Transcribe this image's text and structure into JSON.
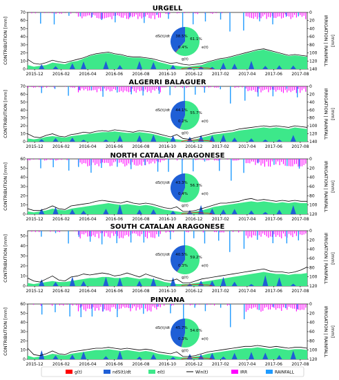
{
  "colors": {
    "g": "#ff0000",
    "ndS": "#1f5fd6",
    "e": "#3de88a",
    "win": "#000000",
    "irr": "#ff00ff",
    "rain": "#1f9bff"
  },
  "legend": {
    "g": "g(t)",
    "ndS": "ndS(t)/dt",
    "e": "e(t)",
    "win": "Win(t)",
    "irr": "IRR",
    "rain": "RAINFALL"
  },
  "x_ticks": [
    "2015-12",
    "2016-02",
    "2016-04",
    "2016-06",
    "2016-08",
    "2016-10",
    "2016-12",
    "2017-02",
    "2017-04",
    "2017-06",
    "2017-08"
  ],
  "chart_data": [
    {
      "type": "area",
      "title": "URGELL",
      "ylabel": "CONTRIBUTION [mm]",
      "ylabel_right": "IRRIGATION | RAINFALL",
      "ylabel_right_unit": "[mm]",
      "ylim": [
        0,
        70
      ],
      "y_ticks": [
        0,
        10,
        20,
        30,
        40,
        50,
        60,
        70
      ],
      "y2lim": [
        0,
        140
      ],
      "y2_ticks": [
        0,
        20,
        40,
        60,
        80,
        100,
        120,
        140
      ],
      "e_profile": [
        5,
        3,
        4,
        5,
        8,
        7,
        6,
        9,
        10,
        13,
        16,
        18,
        19,
        20,
        18,
        17,
        15,
        14,
        14,
        13,
        12,
        9,
        7,
        5,
        4,
        3,
        3,
        4,
        5,
        8,
        10,
        12,
        13,
        15,
        17,
        19,
        21,
        23,
        24,
        22,
        20,
        18,
        16,
        17,
        16,
        15
      ],
      "win_profile": [
        12,
        7,
        6,
        8,
        11,
        9,
        8,
        10,
        12,
        14,
        17,
        19,
        20,
        21,
        19,
        18,
        16,
        15,
        15,
        14,
        13,
        11,
        9,
        7,
        8,
        6,
        5,
        6,
        7,
        9,
        11,
        13,
        14,
        16,
        18,
        20,
        22,
        24,
        25,
        23,
        21,
        19,
        17,
        18,
        17,
        16
      ],
      "pie": [
        {
          "name": "e(t)",
          "pct": 61.1,
          "label": "61.1%"
        },
        {
          "name": "g(t)",
          "pct": 0.4,
          "label": "0.4%"
        },
        {
          "name": "dS(t)/dt",
          "pct": 38.5,
          "label": "38.5%"
        }
      ]
    },
    {
      "type": "area",
      "title": "ALGERRI BALAGUER",
      "ylabel": "CONTRIBUTION [mm]",
      "ylabel_right": "IRRIGATION | RAINFALL",
      "ylabel_right_unit": "[mm]",
      "ylim": [
        0,
        70
      ],
      "y_ticks": [
        0,
        10,
        20,
        30,
        40,
        50,
        60,
        70
      ],
      "y2lim": [
        0,
        140
      ],
      "y2_ticks": [
        0,
        20,
        40,
        60,
        80,
        100,
        120,
        140
      ],
      "e_profile": [
        4,
        3,
        4,
        6,
        7,
        6,
        5,
        7,
        8,
        9,
        10,
        11,
        12,
        12,
        13,
        12,
        11,
        11,
        12,
        11,
        10,
        8,
        6,
        4,
        3,
        2,
        2,
        3,
        5,
        7,
        9,
        10,
        11,
        12,
        14,
        15,
        16,
        17,
        18,
        17,
        18,
        17,
        16,
        18,
        17,
        16
      ],
      "win_profile": [
        10,
        6,
        5,
        8,
        10,
        7,
        6,
        9,
        10,
        12,
        11,
        13,
        14,
        13,
        15,
        14,
        13,
        12,
        14,
        13,
        12,
        10,
        8,
        6,
        9,
        4,
        3,
        5,
        7,
        9,
        11,
        12,
        13,
        14,
        16,
        17,
        18,
        19,
        20,
        19,
        20,
        19,
        18,
        20,
        19,
        18
      ],
      "pie": [
        {
          "name": "e(t)",
          "pct": 55.7,
          "label": "55.7%"
        },
        {
          "name": "g(t)",
          "pct": 0.2,
          "label": "0.2%"
        },
        {
          "name": "dS(t)/dt",
          "pct": 44.1,
          "label": "44.1%"
        }
      ]
    },
    {
      "type": "area",
      "title": "NORTH CATALAN ARAGONESE",
      "ylabel": "CONTRIBUTION [mm]",
      "ylabel_right": "IRRIGATION | RAINFALL",
      "ylabel_right_unit": "[mm]",
      "ylim": [
        0,
        60
      ],
      "y_ticks": [
        0,
        10,
        20,
        30,
        40,
        50,
        60
      ],
      "y2lim": [
        0,
        120
      ],
      "y2_ticks": [
        0,
        20,
        40,
        60,
        80,
        100,
        120
      ],
      "e_profile": [
        3,
        2,
        3,
        4,
        6,
        5,
        4,
        6,
        7,
        8,
        9,
        10,
        11,
        12,
        11,
        10,
        11,
        10,
        9,
        10,
        9,
        7,
        5,
        4,
        3,
        2,
        2,
        3,
        4,
        6,
        8,
        9,
        10,
        11,
        12,
        13,
        14,
        13,
        14,
        13,
        12,
        13,
        12,
        13,
        12,
        12
      ],
      "win_profile": [
        6,
        4,
        4,
        6,
        9,
        6,
        5,
        9,
        10,
        11,
        12,
        14,
        15,
        14,
        13,
        12,
        14,
        12,
        11,
        12,
        11,
        9,
        7,
        6,
        8,
        3,
        3,
        4,
        6,
        8,
        10,
        12,
        12,
        13,
        14,
        16,
        17,
        15,
        16,
        15,
        14,
        15,
        14,
        15,
        14,
        14
      ],
      "pie": [
        {
          "name": "e(t)",
          "pct": 56.3,
          "label": "56.3%"
        },
        {
          "name": "g(t)",
          "pct": 0.4,
          "label": "0.4%"
        },
        {
          "name": "dS(t)/dt",
          "pct": 43.3,
          "label": "43.3%"
        }
      ]
    },
    {
      "type": "area",
      "title": "SOUTH CATALAN ARAGONESE",
      "ylabel": "CONTRIBUTION [mm]",
      "ylabel_right": "IRRIGATION | RAINFALL",
      "ylabel_right_unit": "[mm]",
      "ylim": [
        0,
        55
      ],
      "y_ticks": [
        0,
        10,
        20,
        30,
        40,
        50
      ],
      "y2lim": [
        0,
        120
      ],
      "y2_ticks": [
        0,
        20,
        40,
        60,
        80,
        100,
        120
      ],
      "e_profile": [
        3,
        2,
        3,
        4,
        5,
        4,
        4,
        5,
        6,
        7,
        8,
        8,
        9,
        9,
        8,
        8,
        9,
        8,
        7,
        8,
        7,
        6,
        4,
        3,
        2,
        2,
        2,
        3,
        4,
        5,
        6,
        7,
        8,
        9,
        10,
        11,
        12,
        13,
        14,
        13,
        12,
        12,
        11,
        12,
        12,
        13
      ],
      "win_profile": [
        8,
        5,
        4,
        7,
        10,
        6,
        5,
        9,
        10,
        12,
        11,
        12,
        13,
        12,
        10,
        11,
        13,
        11,
        9,
        12,
        10,
        8,
        6,
        5,
        7,
        3,
        3,
        5,
        7,
        8,
        9,
        10,
        11,
        12,
        13,
        14,
        15,
        16,
        17,
        15,
        14,
        14,
        13,
        14,
        16,
        19
      ],
      "pie": [
        {
          "name": "e(t)",
          "pct": 59.2,
          "label": "59.2%"
        },
        {
          "name": "g(t)",
          "pct": 0.3,
          "label": "0.3%"
        },
        {
          "name": "dS(t)/dt",
          "pct": 40.5,
          "label": "40.5%"
        }
      ]
    },
    {
      "type": "area",
      "title": "PINYANA",
      "ylabel": "CONTRIBUTION [mm]",
      "ylabel_right": "IRRIGATION | RAINFALL",
      "ylabel_right_unit": "[mm]",
      "ylim": [
        0,
        60
      ],
      "y_ticks": [
        0,
        10,
        20,
        30,
        40,
        50,
        60
      ],
      "y2lim": [
        0,
        120
      ],
      "y2_ticks": [
        0,
        20,
        40,
        60,
        80,
        100,
        120
      ],
      "e_profile": [
        4,
        2,
        3,
        4,
        6,
        5,
        4,
        6,
        7,
        8,
        9,
        10,
        10,
        11,
        10,
        9,
        10,
        9,
        8,
        9,
        8,
        6,
        5,
        4,
        3,
        2,
        2,
        3,
        4,
        6,
        7,
        8,
        9,
        10,
        11,
        12,
        12,
        13,
        12,
        11,
        12,
        11,
        10,
        11,
        11,
        10
      ],
      "win_profile": [
        12,
        5,
        4,
        6,
        9,
        6,
        5,
        8,
        9,
        10,
        11,
        12,
        12,
        13,
        12,
        11,
        12,
        11,
        10,
        11,
        10,
        8,
        7,
        6,
        8,
        3,
        3,
        4,
        6,
        8,
        9,
        10,
        11,
        12,
        13,
        14,
        14,
        15,
        14,
        13,
        14,
        13,
        12,
        13,
        13,
        12
      ],
      "pie": [
        {
          "name": "e(t)",
          "pct": 54.0,
          "label": "54.0%"
        },
        {
          "name": "g(t)",
          "pct": 0.3,
          "label": "0.3%"
        },
        {
          "name": "dS(t)/dt",
          "pct": 45.7,
          "label": "45.7%"
        }
      ]
    }
  ]
}
